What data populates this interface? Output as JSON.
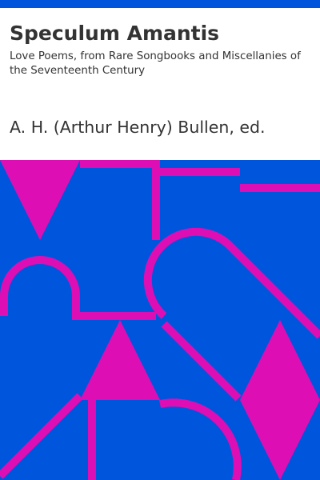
{
  "book": {
    "title": "Speculum Amantis",
    "subtitle": "Love Poems, from Rare Songbooks and Miscellanies of the Seventeenth Century",
    "author": "A. H. (Arthur Henry) Bullen, ed."
  },
  "colors": {
    "accent_blue": "#0055dd",
    "accent_magenta": "#dd0fb4",
    "text": "#333333",
    "background": "#ffffff"
  }
}
